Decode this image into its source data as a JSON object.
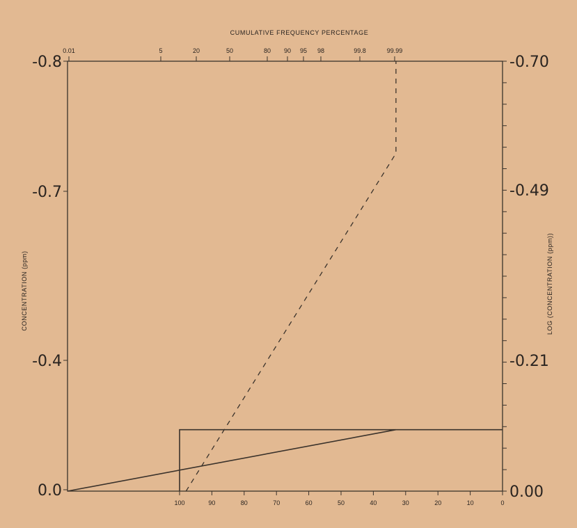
{
  "chart_data": {
    "type": "line",
    "title": "",
    "top_axis_label": "CUMULATIVE FREQUENCY PERCENTAGE",
    "left_axis_label": "CONCENTRATION (ppm)",
    "right_axis_label": "LOG (CONCENTRATION (ppm))",
    "top_ticks": [
      "0.01",
      "5",
      "20",
      "50",
      "80",
      "90",
      "95",
      "98",
      "99.8",
      "99.99"
    ],
    "bottom_ticks": [
      "100",
      "90",
      "80",
      "70",
      "60",
      "50",
      "40",
      "30",
      "20",
      "10",
      "0"
    ],
    "left_ticks": [
      "-0.8",
      "-0.7",
      "-0.4",
      "0.0"
    ],
    "right_ticks": [
      "-0.70",
      "-0.49",
      "-0.21",
      "0.00"
    ],
    "grid": false,
    "series": [
      {
        "style": "solid",
        "x_percent_bottom": [
          100,
          33
        ],
        "y_log_concentration": [
          0.0,
          -0.1
        ]
      },
      {
        "style": "solid-step",
        "x_percent_bottom": [
          100,
          100,
          0
        ],
        "y_log_concentration": [
          0.0,
          -0.1,
          -0.1
        ]
      },
      {
        "style": "dashed",
        "x_percent_bottom": [
          98,
          33,
          33
        ],
        "y_log_concentration": [
          0.0,
          -0.55,
          -0.7
        ]
      }
    ]
  }
}
